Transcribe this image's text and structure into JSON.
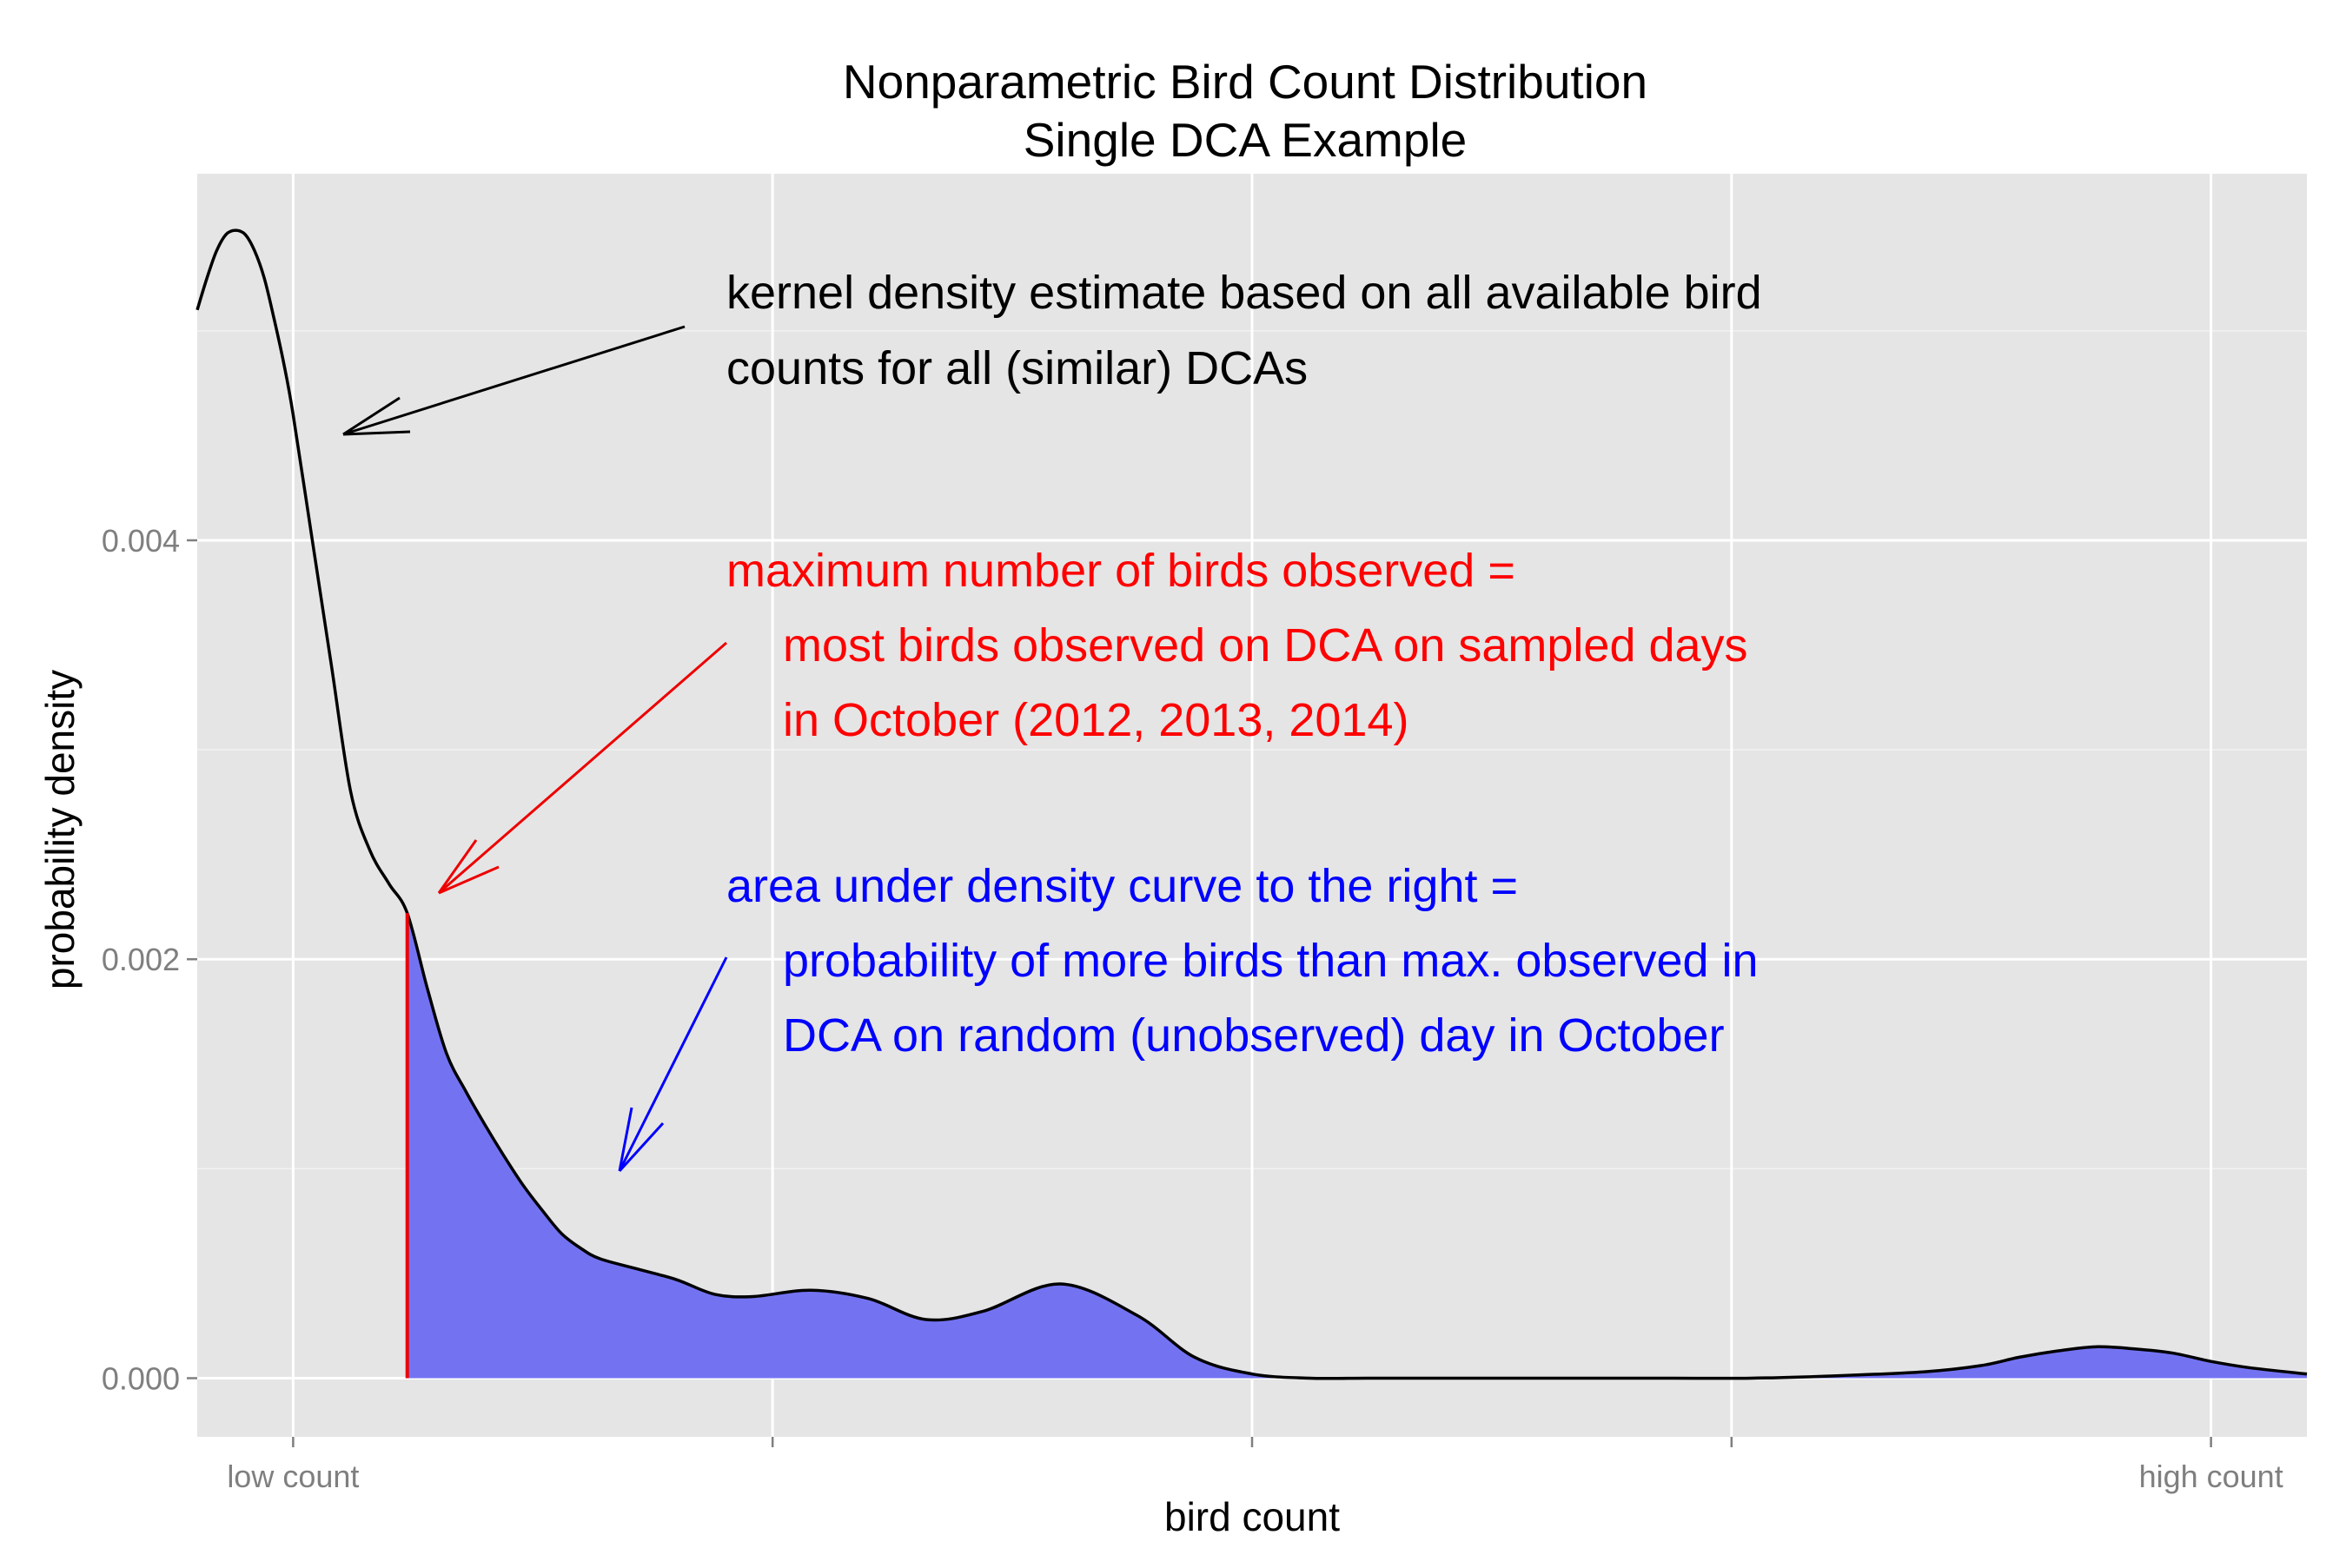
{
  "chart_data": {
    "type": "area",
    "title": "Nonparametric Bird Count Distribution",
    "subtitle": "Single DCA Example",
    "xlabel": "bird count",
    "ylabel": "probability density",
    "x_tick_labels": [
      "low count",
      "",
      "",
      "",
      "high count"
    ],
    "y_ticks": [
      0.0,
      0.002,
      0.004
    ],
    "y_tick_labels": [
      "0.000",
      "0.002",
      "0.004"
    ],
    "xlim": [
      -0.05,
      1.05
    ],
    "ylim": [
      -0.00028,
      0.00575
    ],
    "x_tick_values": [
      0,
      0.25,
      0.5,
      0.75,
      1
    ],
    "grid": true,
    "legend": "none",
    "max_observed": 0.0595,
    "colors": {
      "panel": "#e5e5e5",
      "grid": "#ffffff",
      "curve": "#000000",
      "fill": "#7373f2",
      "max_line": "#ee0000",
      "red_annotation": "#ff0000",
      "blue_annotation": "#0000ff",
      "black_annotation": "#000000",
      "tick_text": "#7f7f7f"
    },
    "series": [
      {
        "x": [
          -0.05,
          -0.045,
          -0.04,
          -0.035,
          -0.03,
          -0.025,
          -0.02,
          -0.015,
          -0.01,
          -0.005,
          0.0,
          0.01,
          0.02,
          0.03,
          0.04,
          0.05,
          0.0595,
          0.07,
          0.08,
          0.09,
          0.1,
          0.11,
          0.12,
          0.13,
          0.14,
          0.15,
          0.16,
          0.18,
          0.2,
          0.22,
          0.24,
          0.27,
          0.3,
          0.33,
          0.36,
          0.4,
          0.44,
          0.47,
          0.5,
          0.53,
          0.56,
          0.59,
          0.62,
          0.65,
          0.68,
          0.72,
          0.76,
          0.8,
          0.85,
          0.88,
          0.9,
          0.92,
          0.94,
          0.96,
          0.98,
          1.0,
          1.02,
          1.05
        ],
        "y": [
          0.0051,
          0.00525,
          0.00538,
          0.00546,
          0.00548,
          0.00546,
          0.00538,
          0.00525,
          0.00506,
          0.00485,
          0.0046,
          0.004,
          0.0034,
          0.0028,
          0.00252,
          0.00236,
          0.00222,
          0.00186,
          0.00155,
          0.00137,
          0.00121,
          0.00106,
          0.00092,
          0.0008,
          0.00069,
          0.00062,
          0.00057,
          0.00052,
          0.00047,
          0.0004,
          0.00039,
          0.00042,
          0.00038,
          0.00028,
          0.00032,
          0.00045,
          0.0003,
          0.0001,
          2e-05,
          0.0,
          0.0,
          0.0,
          0.0,
          0.0,
          0.0,
          0.0,
          0.0,
          1e-05,
          3e-05,
          6e-05,
          0.0001,
          0.00013,
          0.00015,
          0.00014,
          0.00012,
          8e-05,
          5e-05,
          2e-05
        ]
      }
    ],
    "annotations": {
      "kde": {
        "lines": [
          "kernel density estimate based on all available bird",
          "counts for all (similar) DCAs"
        ]
      },
      "max": {
        "lines": [
          "maximum number of birds observed =",
          "most birds observed on DCA on sampled days",
          "in October (2012, 2013, 2014)"
        ]
      },
      "area": {
        "lines": [
          "area under density curve to the right =",
          "probability of more birds than max. observed in",
          "DCA on random (unobserved) day in October"
        ]
      }
    }
  }
}
